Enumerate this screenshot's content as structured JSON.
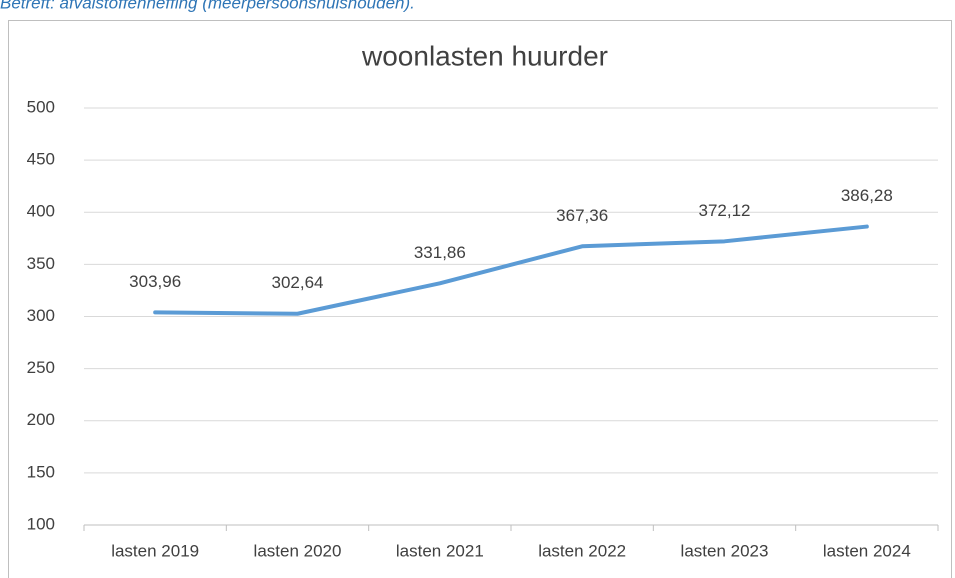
{
  "header_text": "Betreft: afvalstoffenheffing (meerpersoonshuishouden).",
  "chart_data": {
    "type": "line",
    "title": "woonlasten huurder",
    "categories": [
      "lasten 2019",
      "lasten 2020",
      "lasten 2021",
      "lasten 2022",
      "lasten 2023",
      "lasten 2024"
    ],
    "values": [
      303.96,
      302.64,
      331.86,
      367.36,
      372.12,
      386.28
    ],
    "value_labels": [
      "303,96",
      "302,64",
      "331,86",
      "367,36",
      "372,12",
      "386,28"
    ],
    "color": "#5b9bd5",
    "ylim": [
      100,
      500
    ],
    "yticks": [
      100,
      150,
      200,
      250,
      300,
      350,
      400,
      450,
      500
    ],
    "grid": true
  }
}
